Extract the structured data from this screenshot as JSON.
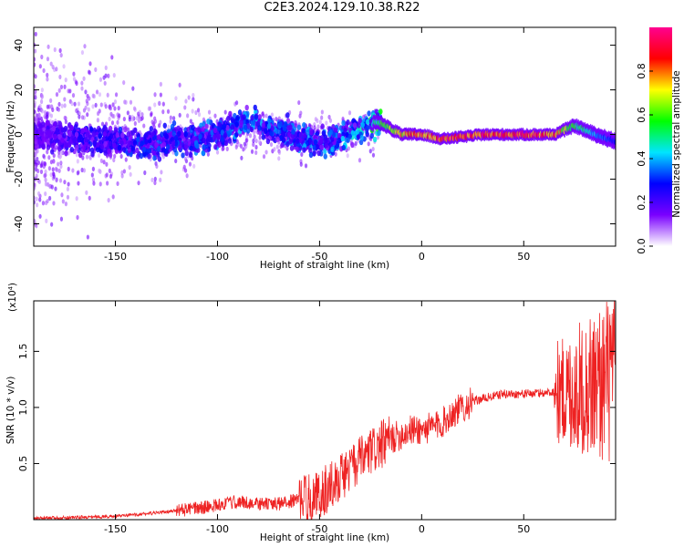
{
  "title": "C2E3.2024.129.10.38.R22",
  "chart_data": [
    {
      "type": "heatmap",
      "xlabel": "Height of straight line (km)",
      "ylabel": "Frequency (Hz)",
      "xlim": [
        -190,
        95
      ],
      "ylim": [
        -50,
        48
      ],
      "xticks": [
        -150,
        -100,
        -50,
        0,
        50
      ],
      "yticks": [
        -40,
        -20,
        0,
        20,
        40
      ],
      "colorbar": {
        "label": "Normalized spectral amplitude",
        "range": [
          0,
          1
        ],
        "ticks": [
          "0.0",
          "0.2",
          "0.4",
          "0.6",
          "0.8"
        ],
        "colors": [
          "#ffffff",
          "#7a00ff",
          "#0000ff",
          "#00e5ff",
          "#00ff00",
          "#ffff00",
          "#ff0000",
          "#ff0090"
        ]
      },
      "ridge": {
        "x": [
          -190,
          -160,
          -130,
          -100,
          -85,
          -70,
          -50,
          -30,
          -22,
          -10,
          0,
          10,
          30,
          50,
          65,
          75,
          85,
          95
        ],
        "frequency": [
          0,
          -3,
          -4,
          0,
          6,
          2,
          -4,
          2,
          6,
          0,
          0,
          -2,
          0,
          0,
          0,
          4,
          0,
          -3
        ],
        "amplitude": [
          0.1,
          0.2,
          0.25,
          0.3,
          0.35,
          0.3,
          0.32,
          0.4,
          0.55,
          0.8,
          0.9,
          0.95,
          0.95,
          0.95,
          0.9,
          0.6,
          0.45,
          0.3
        ]
      }
    },
    {
      "type": "line",
      "xlabel": "Height of straight line (km)",
      "ylabel": "SNR (10 * v/v)",
      "multiplier": "(x10⁴)",
      "xlim": [
        -190,
        95
      ],
      "ylim": [
        0,
        1.95
      ],
      "xticks": [
        -150,
        -100,
        -50,
        0,
        50
      ],
      "yticks": [
        "0.5",
        "1.0",
        "1.5"
      ],
      "color": "#ee2222",
      "series": [
        {
          "x": [
            -190,
            -170,
            -150,
            -130,
            -110,
            -100,
            -90,
            -80,
            -70,
            -60,
            -50,
            -45,
            -40,
            -35,
            -30,
            -25,
            -20,
            -15,
            -10,
            -5,
            0,
            5,
            10,
            15,
            20,
            25,
            30,
            40,
            50,
            60,
            65,
            70,
            75,
            80,
            85,
            90,
            95
          ],
          "y": [
            0.01,
            0.02,
            0.03,
            0.06,
            0.1,
            0.13,
            0.16,
            0.14,
            0.14,
            0.18,
            0.22,
            0.3,
            0.38,
            0.45,
            0.52,
            0.6,
            0.66,
            0.72,
            0.76,
            0.8,
            0.8,
            0.82,
            0.86,
            0.95,
            1.0,
            1.05,
            1.08,
            1.12,
            1.12,
            1.13,
            1.14,
            1.13,
            1.15,
            1.18,
            1.2,
            1.25,
            1.25
          ]
        }
      ]
    }
  ]
}
